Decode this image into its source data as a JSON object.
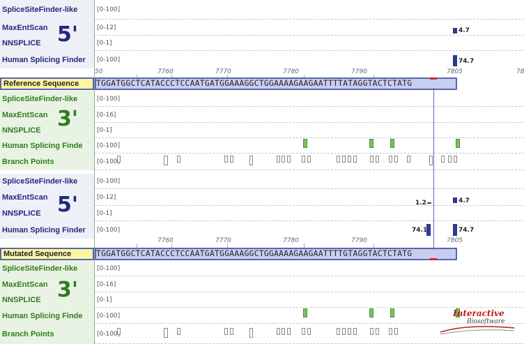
{
  "ranges": {
    "r100": "[0-100]",
    "r12": "[0-12]",
    "r16": "[0-16]",
    "r1": "[0-1]"
  },
  "tracks": {
    "ssf": "SpliceSiteFinder-like",
    "mes": "MaxEntScan",
    "nns": "NNSPLICE",
    "hsf": "Human Splicing Finder",
    "hsf_trunc": "Human Splicing Finde",
    "hsf_trunc2": "Human Splicing Finder",
    "bp": "Branch Points"
  },
  "site_marks": {
    "five": "5'",
    "three": "3'"
  },
  "ruler": {
    "positions": [
      "50",
      "7760",
      "7770",
      "7780",
      "7790",
      "7805",
      "78"
    ]
  },
  "reference": {
    "label": "Reference Sequence",
    "sequence": "TGGATGGCTCATACCCTCCAATGATGGAAAGGCTGGAAAAGAAGAATTTTATAGGTACTCTATG"
  },
  "mutated": {
    "label": "Mutated Sequence",
    "sequence": "TGGATGGCTCATACCCTCCAATGATGGAAAGGCTGGAAAAGAAGAATTTTGTAGGTACTCTATG"
  },
  "scores": {
    "ref_mes": "4.7",
    "ref_hsf": "74.7",
    "mut_mes_new": "1.2",
    "mut_mes": "4.7",
    "mut_hsf_new": "74.1",
    "mut_hsf": "74.7"
  },
  "watermark": {
    "line1": "Interactive",
    "line2": "Biosoftware"
  }
}
